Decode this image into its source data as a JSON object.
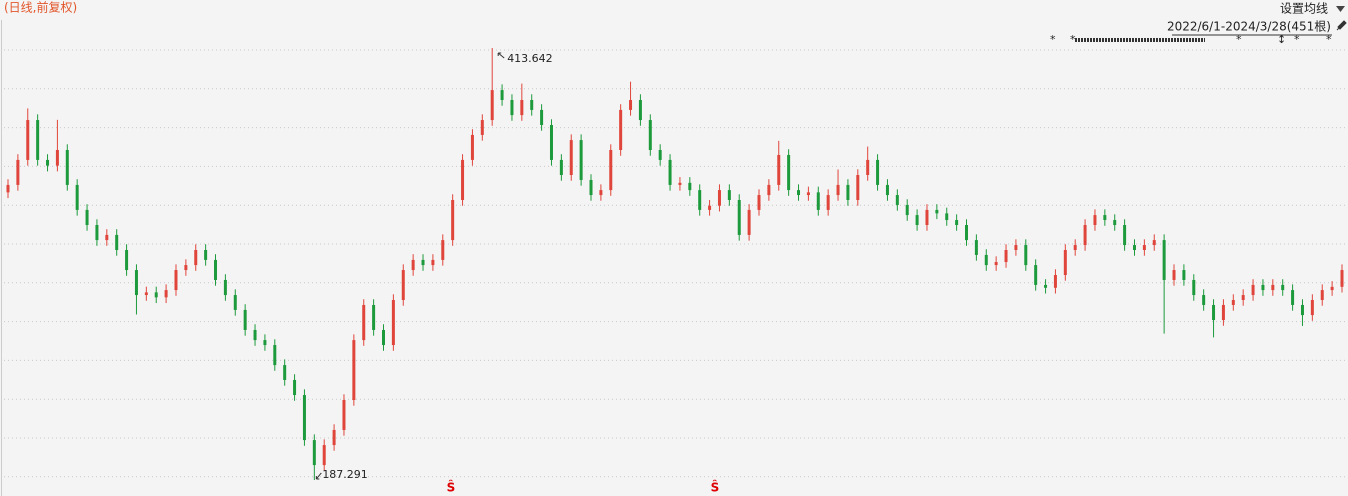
{
  "chart_data": {
    "type": "candlestick",
    "title": "(日线,前复权)",
    "settings_label": "设置均线",
    "range_label": "2022/6/1-2024/3/28(451根)",
    "signal_markers": [
      "Ŝ",
      "Ŝ"
    ],
    "ylim": [
      178.9,
      438.8
    ],
    "up_color": "#e0453b",
    "down_color": "#1d9a3c",
    "open": [
      338.0,
      341.9,
      355.0,
      375.9,
      355.0,
      352.0,
      360.2,
      341.9,
      328.8,
      320.9,
      313.0,
      315.7,
      307.8,
      297.3,
      284.2,
      285.6,
      283.0,
      286.8,
      297.3,
      299.9,
      307.8,
      302.6,
      292.1,
      284.2,
      276.4,
      265.9,
      260.6,
      258.0,
      247.5,
      239.7,
      231.8,
      208.2,
      195.1,
      205.6,
      213.5,
      229.2,
      260.6,
      279.0,
      265.9,
      258.0,
      281.6,
      297.3,
      302.6,
      299.9,
      302.6,
      313.0,
      334.0,
      355.0,
      368.1,
      375.9,
      391.6,
      386.4,
      378.5,
      386.4,
      381.2,
      373.3,
      355.0,
      347.1,
      365.4,
      344.5,
      336.6,
      339.2,
      360.2,
      381.2,
      386.4,
      375.9,
      360.2,
      355.0,
      341.9,
      343.0,
      339.2,
      328.8,
      331.0,
      339.2,
      334.0,
      315.7,
      328.8,
      336.6,
      341.9,
      357.6,
      339.2,
      336.6,
      338.0,
      328.8,
      336.6,
      341.9,
      334.0,
      347.1,
      355.0,
      341.9,
      336.6,
      331.4,
      326.1,
      320.9,
      328.8,
      327.0,
      323.5,
      320.9,
      313.0,
      305.2,
      299.9,
      301.5,
      307.8,
      310.4,
      299.9,
      289.5,
      288.0,
      294.7,
      307.8,
      310.4,
      320.9,
      326.1,
      323.5,
      320.9,
      310.4,
      307.8,
      310.4,
      313.0,
      292.1,
      297.3,
      292.1,
      284.2,
      279.0,
      271.1,
      279.0,
      281.6,
      284.2,
      289.5,
      286.8,
      289.5,
      286.8,
      279.0,
      273.7,
      281.6,
      286.8,
      288.5
    ],
    "high": [
      344.9,
      358.0,
      382.0,
      378.9,
      358.0,
      376.0,
      363.2,
      344.9,
      331.8,
      323.9,
      318.7,
      318.7,
      310.8,
      300.3,
      288.6,
      288.6,
      289.8,
      300.3,
      302.9,
      310.8,
      310.8,
      305.6,
      295.1,
      287.2,
      279.4,
      268.9,
      263.6,
      261.0,
      250.5,
      242.7,
      234.8,
      211.2,
      208.6,
      216.5,
      232.2,
      263.6,
      282.0,
      282.0,
      268.9,
      284.6,
      300.3,
      305.6,
      305.6,
      305.6,
      316.0,
      337.0,
      358.0,
      371.1,
      378.9,
      413.642,
      394.6,
      389.4,
      395.0,
      389.4,
      384.2,
      376.3,
      358.0,
      368.4,
      368.4,
      347.5,
      342.2,
      363.2,
      384.2,
      396.0,
      389.4,
      378.9,
      363.2,
      358.0,
      346.0,
      346.0,
      342.2,
      334.0,
      342.2,
      342.2,
      337.0,
      331.8,
      339.6,
      344.9,
      365.0,
      360.6,
      342.2,
      341.0,
      341.0,
      339.6,
      350.0,
      344.9,
      350.1,
      362.0,
      358.0,
      344.9,
      339.6,
      334.4,
      329.1,
      331.8,
      331.8,
      330.0,
      326.5,
      323.9,
      316.0,
      308.2,
      304.5,
      310.8,
      313.4,
      313.4,
      302.9,
      292.5,
      297.7,
      310.8,
      313.4,
      323.9,
      329.1,
      329.1,
      326.5,
      323.9,
      313.4,
      313.4,
      316.0,
      316.0,
      300.3,
      300.3,
      295.1,
      287.2,
      282.0,
      282.0,
      284.6,
      287.2,
      292.5,
      292.5,
      292.5,
      292.5,
      289.8,
      282.0,
      284.6,
      289.8,
      291.5,
      300.3
    ],
    "low": [
      335.0,
      338.9,
      352.0,
      352.0,
      349.0,
      349.0,
      338.9,
      325.8,
      317.9,
      310.0,
      310.0,
      304.8,
      294.3,
      274.0,
      281.2,
      280.0,
      280.0,
      283.8,
      294.3,
      296.9,
      299.6,
      289.1,
      281.2,
      273.4,
      262.9,
      257.6,
      255.0,
      244.5,
      236.7,
      228.8,
      205.2,
      187.291,
      192.1,
      202.6,
      210.5,
      226.2,
      257.6,
      262.9,
      255.0,
      255.0,
      278.6,
      294.3,
      296.9,
      296.9,
      299.6,
      310.0,
      331.0,
      352.0,
      365.1,
      372.9,
      383.4,
      375.5,
      375.5,
      378.2,
      370.3,
      352.0,
      344.1,
      344.1,
      341.5,
      333.6,
      333.6,
      336.2,
      357.2,
      378.2,
      372.9,
      357.2,
      352.0,
      338.9,
      338.9,
      336.2,
      325.8,
      325.8,
      328.0,
      331.0,
      312.7,
      312.7,
      325.8,
      333.6,
      338.9,
      336.2,
      333.6,
      333.6,
      325.8,
      325.8,
      333.6,
      331.0,
      331.0,
      344.1,
      338.9,
      333.6,
      328.4,
      323.1,
      317.9,
      317.9,
      324.0,
      320.5,
      317.9,
      310.0,
      302.2,
      296.9,
      296.9,
      298.5,
      304.8,
      296.9,
      286.5,
      285.0,
      285.0,
      291.7,
      304.8,
      307.4,
      317.9,
      320.5,
      317.9,
      307.4,
      304.8,
      304.8,
      307.4,
      264.0,
      289.1,
      289.1,
      281.2,
      276.0,
      262.0,
      268.1,
      276.0,
      278.6,
      281.2,
      283.8,
      283.8,
      283.8,
      276.0,
      268.0,
      270.7,
      278.6,
      283.8,
      285.5
    ],
    "close": [
      341.9,
      355.0,
      375.9,
      355.0,
      352.0,
      360.2,
      341.9,
      328.8,
      320.9,
      313.0,
      315.7,
      307.8,
      297.3,
      284.2,
      285.6,
      283.0,
      286.8,
      297.3,
      299.9,
      307.8,
      302.6,
      292.1,
      284.2,
      276.4,
      265.9,
      260.6,
      258.0,
      247.5,
      239.7,
      231.8,
      208.2,
      195.1,
      205.6,
      213.5,
      229.2,
      260.6,
      279.0,
      265.9,
      258.0,
      281.6,
      297.3,
      302.6,
      299.9,
      302.6,
      313.0,
      334.0,
      355.0,
      368.1,
      375.9,
      391.6,
      386.4,
      378.5,
      386.4,
      381.2,
      373.3,
      355.0,
      347.1,
      365.4,
      344.5,
      336.6,
      339.2,
      360.2,
      381.2,
      386.4,
      375.9,
      360.2,
      355.0,
      341.9,
      343.0,
      339.2,
      328.8,
      331.0,
      339.2,
      334.0,
      315.7,
      328.8,
      336.6,
      341.9,
      357.6,
      339.2,
      336.6,
      338.0,
      328.8,
      336.6,
      341.9,
      334.0,
      347.1,
      355.0,
      341.9,
      336.6,
      331.4,
      326.1,
      320.9,
      328.8,
      327.0,
      323.5,
      320.9,
      313.0,
      305.2,
      299.9,
      301.5,
      307.8,
      310.4,
      299.9,
      289.5,
      288.0,
      294.7,
      307.8,
      310.4,
      320.9,
      326.1,
      323.5,
      320.9,
      310.4,
      307.8,
      310.4,
      313.0,
      292.1,
      297.3,
      292.1,
      284.2,
      279.0,
      271.1,
      279.0,
      281.6,
      284.2,
      289.5,
      286.8,
      289.5,
      286.8,
      279.0,
      273.7,
      281.6,
      286.8,
      288.5,
      297.3
    ]
  }
}
